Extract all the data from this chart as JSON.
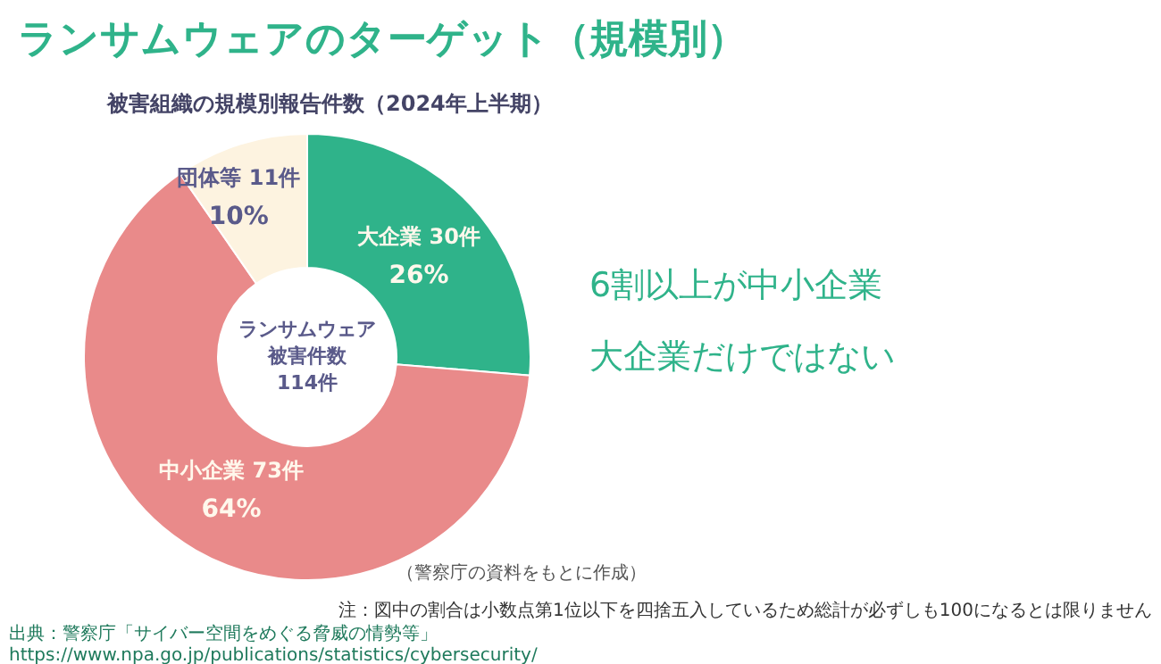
{
  "chart_data": {
    "type": "donut",
    "title": "ランサムウェアのターゲット（規模別）",
    "subtitle": "被害組織の規模別報告件数（2024年上半期）",
    "categories": [
      "大企業",
      "中小企業",
      "団体等"
    ],
    "values": [
      30,
      73,
      11
    ],
    "colors": [
      "#2fb38a",
      "#e98a8a",
      "#fdf3e0"
    ],
    "value_labels": [
      "30件",
      "73件",
      "11件"
    ],
    "annotations": [
      {
        "text": "26%",
        "x": "大企業"
      },
      {
        "text": "64%",
        "x": "中小企業"
      },
      {
        "text": "10%",
        "x": "団体等"
      },
      "ランサムウェア",
      "被害件数",
      "114件",
      "6割以上が中小企業",
      "大企業だけではない",
      "（警察庁の資料をもとに作成）",
      "注：図中の割合は小数点第1位以下を四捨五入しているため総計が必ずしも100になるとは限りません",
      "出典：警察庁「サイバー空間をめぐる脅威の情勢等」",
      "https://www.npa.go.jp/publications/statistics/cybersecurity/"
    ]
  }
}
